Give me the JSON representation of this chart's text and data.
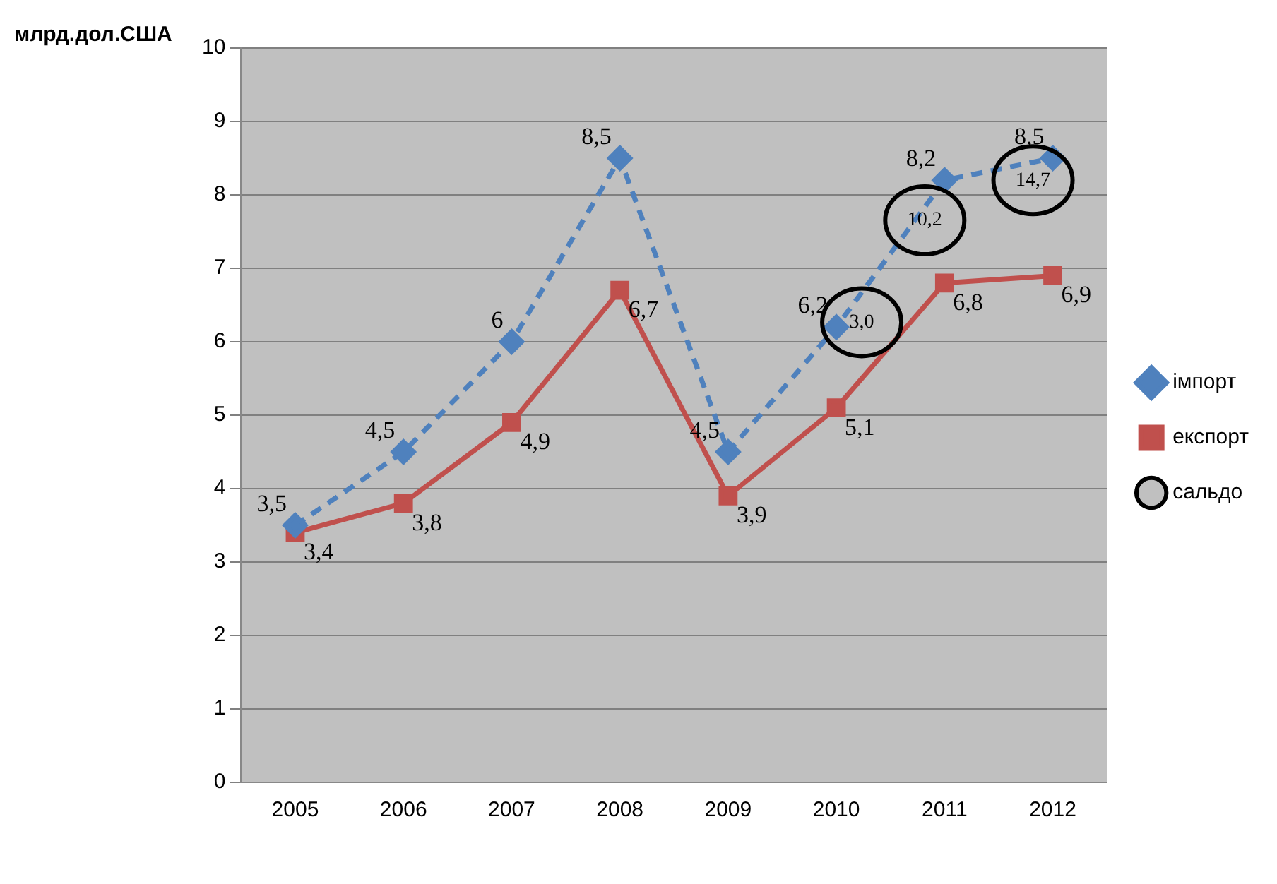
{
  "chart_data": {
    "type": "line",
    "ylabel": "млрд.дол.США",
    "categories": [
      "2005",
      "2006",
      "2007",
      "2008",
      "2009",
      "2010",
      "2011",
      "2012"
    ],
    "series": [
      {
        "name": "імпорт",
        "color": "#4f81bd",
        "line_style": "dashed",
        "marker": "diamond",
        "values": [
          3.5,
          4.5,
          6,
          8.5,
          4.5,
          6.2,
          8.2,
          8.5
        ],
        "value_labels": [
          "3,5",
          "4,5",
          "6",
          "8,5",
          "4,5",
          "6,2",
          "8,2",
          "8,5"
        ]
      },
      {
        "name": "експорт",
        "color": "#c0504d",
        "line_style": "solid",
        "marker": "square",
        "values": [
          3.4,
          3.8,
          4.9,
          6.7,
          3.9,
          5.1,
          6.8,
          6.9
        ],
        "value_labels": [
          "3,4",
          "3,8",
          "4,9",
          "6,7",
          "3,9",
          "5,1",
          "6,8",
          "6,9"
        ]
      },
      {
        "name": "сальдо",
        "color": "#c0c0c0",
        "marker": "circle",
        "values": [
          null,
          null,
          null,
          null,
          null,
          null,
          null,
          null
        ]
      }
    ],
    "annotations": [
      "3,0",
      "10,2",
      "14,7"
    ],
    "ylim": [
      0,
      10
    ],
    "yticks": [
      0,
      1,
      2,
      3,
      4,
      5,
      6,
      7,
      8,
      9,
      10
    ],
    "grid": "y",
    "legend": "right"
  }
}
